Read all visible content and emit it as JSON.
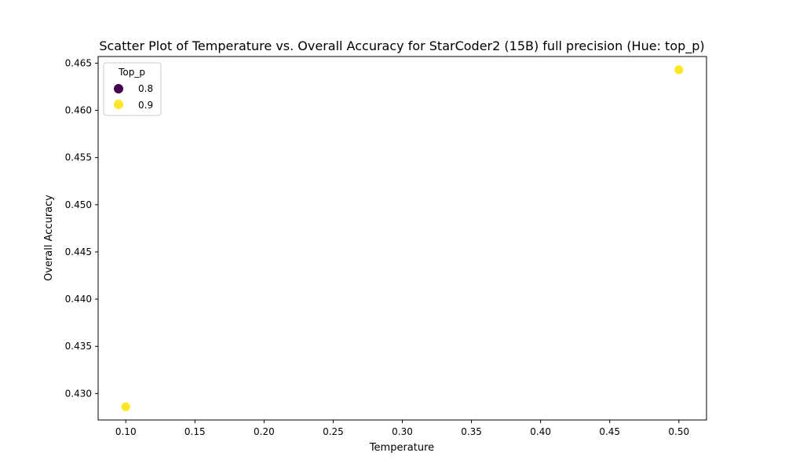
{
  "chart_data": {
    "type": "scatter",
    "title": "Scatter Plot of Temperature vs. Overall Accuracy for StarCoder2 (15B) full precision (Hue: top_p)",
    "xlabel": "Temperature",
    "ylabel": "Overall Accuracy",
    "xlim": [
      0.08,
      0.52
    ],
    "ylim": [
      0.4272,
      0.4657
    ],
    "xticks": [
      0.1,
      0.15,
      0.2,
      0.25,
      0.3,
      0.35,
      0.4,
      0.45,
      0.5
    ],
    "xtick_labels": [
      "0.10",
      "0.15",
      "0.20",
      "0.25",
      "0.30",
      "0.35",
      "0.40",
      "0.45",
      "0.50"
    ],
    "yticks": [
      0.43,
      0.435,
      0.44,
      0.445,
      0.45,
      0.455,
      0.46,
      0.465
    ],
    "ytick_labels": [
      "0.430",
      "0.435",
      "0.440",
      "0.445",
      "0.450",
      "0.455",
      "0.460",
      "0.465"
    ],
    "grid": false,
    "legend": {
      "title": "Top_p",
      "placement": "top-left",
      "entries": [
        {
          "label": "0.8",
          "color": "#440154"
        },
        {
          "label": "0.9",
          "color": "#fde725"
        }
      ]
    },
    "points": [
      {
        "x": 0.1,
        "y": 0.4286,
        "top_p": 0.9,
        "color": "#fde725"
      },
      {
        "x": 0.5,
        "y": 0.4643,
        "top_p": 0.9,
        "color": "#fde725"
      }
    ]
  }
}
